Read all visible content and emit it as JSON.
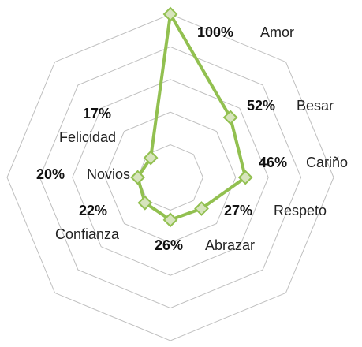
{
  "chart_data": {
    "type": "radar",
    "categories": [
      "Amor",
      "Besar",
      "Cariño",
      "Respeto",
      "Abrazar",
      "Confianza",
      "Novios",
      "Felicidad"
    ],
    "values": [
      100,
      52,
      46,
      27,
      26,
      22,
      20,
      17
    ],
    "value_labels": [
      "100%",
      "52%",
      "46%",
      "27%",
      "26%",
      "22%",
      "20%",
      "17%"
    ],
    "color": "#92c050",
    "rlim": [
      0,
      100
    ],
    "rticks": [
      20,
      40,
      60,
      80,
      100
    ],
    "grid": true
  }
}
